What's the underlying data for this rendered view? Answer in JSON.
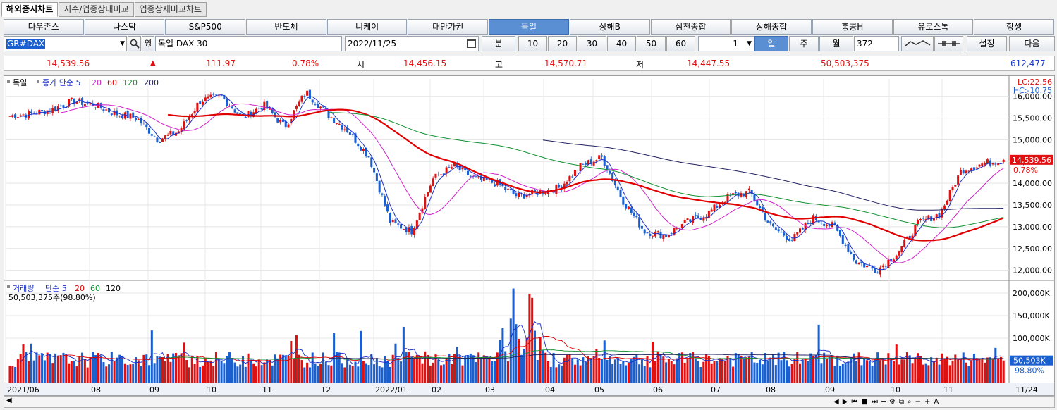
{
  "tabs": [
    "해외증시차트",
    "지수/업종상대비교",
    "업종상세비교차트"
  ],
  "markets": [
    "다우존스",
    "나스닥",
    "S&P500",
    "반도체",
    "니케이",
    "대만가권",
    "독일",
    "상해B",
    "심천종합",
    "상해종합",
    "홍콩H",
    "유로스톡",
    "항셍"
  ],
  "active_market": "독일",
  "controls": {
    "symbol": "GR#DAX",
    "lang_btn": "영",
    "name": "독일 DAX 30",
    "date": "2022/11/25",
    "period_label": "분",
    "periods": [
      "10",
      "20",
      "30",
      "40",
      "50",
      "60"
    ],
    "count": "1",
    "day": "일",
    "week": "주",
    "month": "월",
    "bars": "372",
    "settings": "설정",
    "next": "다음"
  },
  "quote": {
    "price": "14,539.56",
    "arrow": "▲",
    "change": "111.97",
    "pct": "0.78%",
    "open_label": "시",
    "open": "14,456.15",
    "high_label": "고",
    "high": "14,570.71",
    "low_label": "저",
    "low": "14,447.55",
    "volume": "50,503,375",
    "amount": "612,477"
  },
  "price_panel": {
    "legend_name": "독일",
    "legend_ma": "종가 단순 5",
    "ma_periods": [
      "20",
      "60",
      "120",
      "200"
    ],
    "lc": "LC:22.56",
    "hc": "HC:-10.75",
    "current": "14,539.56",
    "current_pct": "0.78%",
    "y_ticks": [
      "16,000.00",
      "15,500.00",
      "15,000.00",
      "14,500.00",
      "14,000.00",
      "13,500.00",
      "13,000.00",
      "12,500.00",
      "12,000.00"
    ]
  },
  "volume_panel": {
    "legend_name": "거래량",
    "legend_ma": "단순 5",
    "ma_periods": [
      "20",
      "60",
      "120"
    ],
    "value_text": "50,503,375주(98.80%)",
    "y_ticks": [
      "200,000K",
      "150,000K",
      "100,000K"
    ],
    "current": "50,503K",
    "current_pct": "98.80%"
  },
  "x_labels": [
    "2021/06",
    "08",
    "09",
    "10",
    "11",
    "12",
    "2022/01",
    "02",
    "03",
    "04",
    "05",
    "06",
    "07",
    "08",
    "09",
    "10",
    "11",
    "11/24"
  ],
  "colors": {
    "up": "#e01010",
    "down": "#1a5fd0",
    "ma5": "#1a2ec8",
    "ma20": "#d020c8",
    "ma60": "#e00000",
    "ma120": "#109030",
    "ma200": "#202060",
    "active": "#5b8fd3"
  },
  "chart_data": {
    "type": "candlestick",
    "ylim": [
      11800,
      16400
    ],
    "anchors_close": [
      15550,
      15600,
      15700,
      15900,
      15800,
      15600,
      15500,
      15000,
      15200,
      15900,
      16000,
      15500,
      15800,
      15300,
      16100,
      15600,
      15200,
      14600,
      13100,
      12900,
      14100,
      14400,
      14100,
      14000,
      13700,
      13800,
      13900,
      14400,
      14600,
      13600,
      12900,
      12800,
      13100,
      13300,
      13700,
      13800,
      13000,
      12700,
      13200,
      13000,
      12200,
      12000,
      12400,
      13100,
      13300,
      14300,
      14450,
      14540
    ],
    "volume_range_k": [
      35000,
      210000
    ]
  }
}
